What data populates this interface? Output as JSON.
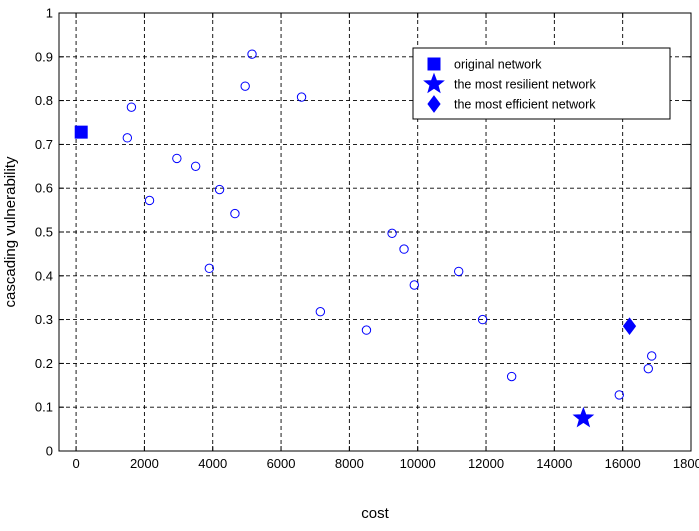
{
  "chart_data": {
    "type": "scatter",
    "xlabel": "cost",
    "ylabel": "cascading vulnerability",
    "xlim": [
      -500,
      18000
    ],
    "ylim": [
      0,
      1
    ],
    "xticks": [
      0,
      2000,
      4000,
      6000,
      8000,
      10000,
      12000,
      14000,
      16000,
      18000
    ],
    "yticks": [
      0,
      0.1,
      0.2,
      0.3,
      0.4,
      0.5,
      0.6,
      0.7,
      0.8,
      0.9,
      1
    ],
    "grid": true,
    "legend_position": "top-right",
    "series": [
      {
        "name": "",
        "marker": "open-circle",
        "color": "#0000ff",
        "points": [
          {
            "x": 1500,
            "y": 0.715
          },
          {
            "x": 1620,
            "y": 0.785
          },
          {
            "x": 2150,
            "y": 0.572
          },
          {
            "x": 2950,
            "y": 0.668
          },
          {
            "x": 3500,
            "y": 0.65
          },
          {
            "x": 3900,
            "y": 0.417
          },
          {
            "x": 4200,
            "y": 0.597
          },
          {
            "x": 4650,
            "y": 0.542
          },
          {
            "x": 4950,
            "y": 0.833
          },
          {
            "x": 5150,
            "y": 0.906
          },
          {
            "x": 6600,
            "y": 0.808
          },
          {
            "x": 7150,
            "y": 0.318
          },
          {
            "x": 8500,
            "y": 0.276
          },
          {
            "x": 9250,
            "y": 0.497
          },
          {
            "x": 9600,
            "y": 0.461
          },
          {
            "x": 9900,
            "y": 0.379
          },
          {
            "x": 11200,
            "y": 0.41
          },
          {
            "x": 11900,
            "y": 0.3
          },
          {
            "x": 12750,
            "y": 0.17
          },
          {
            "x": 15900,
            "y": 0.128
          },
          {
            "x": 16750,
            "y": 0.188
          },
          {
            "x": 16850,
            "y": 0.217
          }
        ]
      },
      {
        "name": "original network",
        "marker": "square",
        "color": "#0000ff",
        "points": [
          {
            "x": 150,
            "y": 0.728
          }
        ]
      },
      {
        "name": "the most resilient network",
        "marker": "star",
        "color": "#0000ff",
        "points": [
          {
            "x": 14850,
            "y": 0.075
          }
        ]
      },
      {
        "name": "the most efficient network",
        "marker": "diamond",
        "color": "#0000ff",
        "points": [
          {
            "x": 16200,
            "y": 0.285
          }
        ]
      }
    ]
  }
}
